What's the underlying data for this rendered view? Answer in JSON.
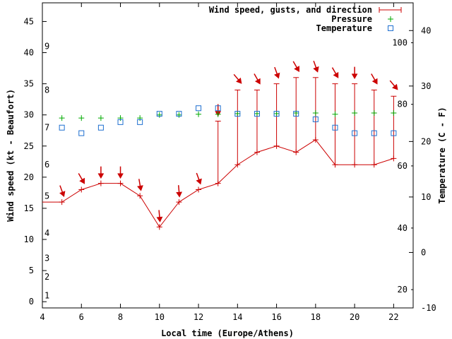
{
  "chart_data": {
    "type": "line",
    "title": "",
    "xlabel": "Local time (Europe/Athens)",
    "ylabel": "Wind speed (kt - Beaufort)",
    "y2label": "Temperature (C - F)",
    "xlim": [
      4,
      23
    ],
    "ylim": [
      -1,
      48
    ],
    "y2lim": [
      -10,
      45
    ],
    "x_ticks": [
      4,
      6,
      8,
      10,
      12,
      14,
      16,
      18,
      20,
      22
    ],
    "y_ticks": [
      0,
      5,
      10,
      15,
      20,
      25,
      30,
      35,
      40,
      45
    ],
    "y2_ticks": [
      -10,
      0,
      10,
      20,
      30,
      40
    ],
    "y2_f_labels": [
      {
        "label": "20",
        "c": -6.7
      },
      {
        "label": "40",
        "c": 4.4
      },
      {
        "label": "60",
        "c": 15.6
      },
      {
        "label": "80",
        "c": 26.7
      },
      {
        "label": "100",
        "c": 37.8
      }
    ],
    "beaufort_labels": [
      {
        "label": "1",
        "kt": 1
      },
      {
        "label": "2",
        "kt": 4
      },
      {
        "label": "3",
        "kt": 7
      },
      {
        "label": "4",
        "kt": 11
      },
      {
        "label": "5",
        "kt": 17
      },
      {
        "label": "6",
        "kt": 22
      },
      {
        "label": "7",
        "kt": 28
      },
      {
        "label": "8",
        "kt": 34
      },
      {
        "label": "9",
        "kt": 41
      }
    ],
    "legend": [
      {
        "label": "Wind speed, gusts, and direction",
        "color": "#cc0000",
        "marker": "errorbar"
      },
      {
        "label": "Pressure",
        "color": "#00aa00",
        "marker": "plus"
      },
      {
        "label": "Temperature",
        "color": "#1e6fd0",
        "marker": "square"
      }
    ],
    "legend_position": "top-right",
    "wind": {
      "x": [
        4,
        5,
        6,
        7,
        8,
        9,
        10,
        11,
        12,
        13,
        14,
        15,
        16,
        17,
        18,
        19,
        20,
        21,
        22
      ],
      "speed": [
        16,
        16,
        18,
        19,
        19,
        17,
        12,
        16,
        18,
        19,
        22,
        24,
        25,
        24,
        26,
        22,
        22,
        22,
        23
      ],
      "gust": [
        null,
        null,
        null,
        null,
        null,
        null,
        null,
        null,
        null,
        29,
        34,
        34,
        35,
        36,
        36,
        35,
        35,
        34,
        33
      ],
      "direction_deg": [
        null,
        340,
        330,
        0,
        0,
        350,
        355,
        355,
        340,
        0,
        320,
        330,
        340,
        330,
        340,
        330,
        0,
        330,
        320
      ]
    },
    "pressure": {
      "x": [
        5,
        6,
        7,
        8,
        9,
        10,
        11,
        12,
        13,
        14,
        15,
        16,
        17,
        18,
        19,
        20,
        21,
        22
      ],
      "y": [
        29.5,
        29.5,
        29.5,
        29.5,
        29.5,
        30.0,
        30.0,
        30.1,
        30.1,
        30.2,
        30.2,
        30.2,
        30.3,
        30.3,
        30.1,
        30.3,
        30.3,
        30.3
      ]
    },
    "temperature": {
      "x": [
        5,
        6,
        7,
        8,
        9,
        10,
        11,
        12,
        13,
        14,
        15,
        16,
        17,
        18,
        19,
        20,
        21,
        22
      ],
      "c": [
        22.5,
        21.5,
        22.5,
        23.5,
        23.5,
        25,
        25,
        26,
        26,
        25,
        25,
        25,
        25,
        24,
        22.5,
        21.5,
        21.5,
        21.5
      ]
    }
  },
  "colors": {
    "wind": "#cc0000",
    "pressure": "#00aa00",
    "temperature": "#1e6fd0"
  }
}
